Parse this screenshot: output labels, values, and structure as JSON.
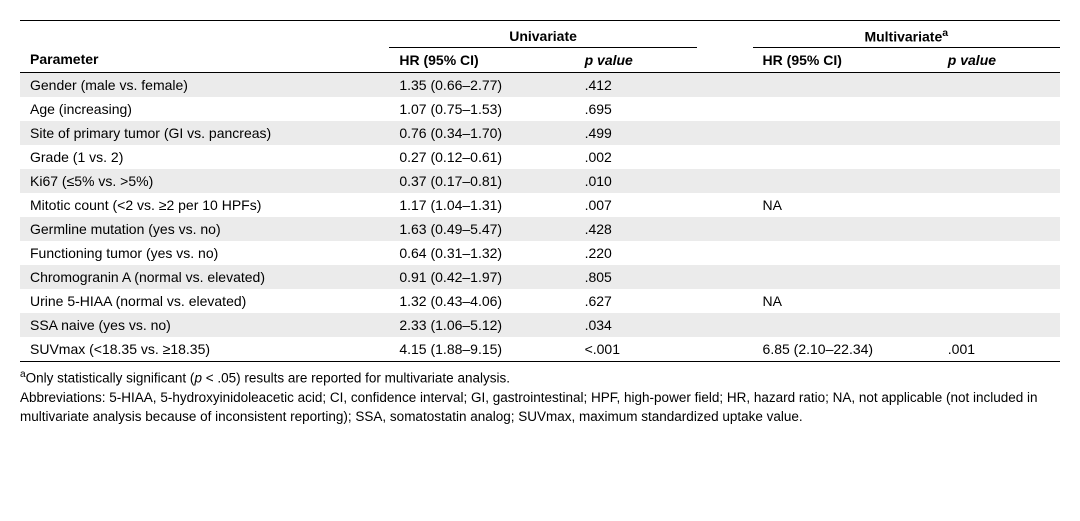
{
  "header": {
    "univariate": "Univariate",
    "multivariate_html": "Multivariate<sup>a</sup>",
    "parameter": "Parameter",
    "hr_ci": "HR (95% CI)",
    "p_value_html": "<span class=\"italic\">p</span> value"
  },
  "rows": [
    {
      "param": "Gender (male vs. female)",
      "uni_hr": "1.35 (0.66–2.77)",
      "uni_p": ".412",
      "multi_hr": "",
      "multi_p": ""
    },
    {
      "param": "Age (increasing)",
      "uni_hr": "1.07 (0.75–1.53)",
      "uni_p": ".695",
      "multi_hr": "",
      "multi_p": ""
    },
    {
      "param": "Site of primary tumor (GI vs. pancreas)",
      "uni_hr": "0.76 (0.34–1.70)",
      "uni_p": ".499",
      "multi_hr": "",
      "multi_p": ""
    },
    {
      "param": "Grade (1 vs. 2)",
      "uni_hr": "0.27 (0.12–0.61)",
      "uni_p": ".002",
      "multi_hr": "",
      "multi_p": ""
    },
    {
      "param": "Ki67 (≤5% vs. >5%)",
      "uni_hr": "0.37 (0.17–0.81)",
      "uni_p": ".010",
      "multi_hr": "",
      "multi_p": ""
    },
    {
      "param": "Mitotic count (<2 vs. ≥2 per 10 HPFs)",
      "uni_hr": "1.17 (1.04–1.31)",
      "uni_p": ".007",
      "multi_hr": "NA",
      "multi_p": ""
    },
    {
      "param": "Germline mutation (yes vs. no)",
      "uni_hr": "1.63 (0.49–5.47)",
      "uni_p": ".428",
      "multi_hr": "",
      "multi_p": ""
    },
    {
      "param": "Functioning tumor (yes vs. no)",
      "uni_hr": "0.64 (0.31–1.32)",
      "uni_p": ".220",
      "multi_hr": "",
      "multi_p": ""
    },
    {
      "param": "Chromogranin A (normal vs. elevated)",
      "uni_hr": "0.91 (0.42–1.97)",
      "uni_p": ".805",
      "multi_hr": "",
      "multi_p": ""
    },
    {
      "param": "Urine 5-HIAA (normal vs. elevated)",
      "uni_hr": "1.32 (0.43–4.06)",
      "uni_p": ".627",
      "multi_hr": "NA",
      "multi_p": ""
    },
    {
      "param": "SSA naive (yes vs. no)",
      "uni_hr": "2.33 (1.06–5.12)",
      "uni_p": ".034",
      "multi_hr": "",
      "multi_p": ""
    },
    {
      "param": "SUVmax (<18.35 vs. ≥18.35)",
      "uni_hr": "4.15 (1.88–9.15)",
      "uni_p": "<.001",
      "multi_hr": "6.85 (2.10–22.34)",
      "multi_p": ".001"
    }
  ],
  "footnotes": {
    "note_a_html": "<sup>a</sup>Only statistically significant (<span class=\"italic\">p</span> < .05) results are reported for multivariate analysis.",
    "abbrev": "Abbreviations: 5-HIAA, 5-hydroxyinidoleacetic acid; CI, confidence interval; GI, gastrointestinal; HPF, high-power field; HR, hazard ratio; NA, not applicable (not included in multivariate analysis because of inconsistent reporting); SSA, somatostatin analog; SUVmax, maximum standardized uptake value."
  },
  "style": {
    "row_odd_bg": "#ebebeb",
    "row_even_bg": "#ffffff",
    "border_color": "#000000",
    "font_size_body": 14,
    "font_size_foot": 13.5
  }
}
